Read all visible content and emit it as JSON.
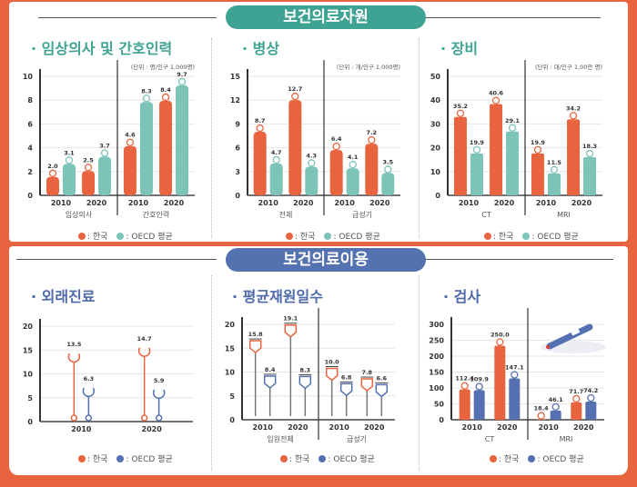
{
  "sections": {
    "resources": {
      "title": "보건의료자원",
      "color": "#3fa393"
    },
    "utilization": {
      "title": "보건의료이용",
      "color": "#5572b0"
    }
  },
  "legend": {
    "korea": ": 한국",
    "oecd": ": OECD 평균"
  },
  "colors": {
    "korea": "#e8643f",
    "oecd_resources": "#7cc3b8",
    "oecd_utilization": "#5470b0",
    "title_resources": "#3fa393",
    "title_utilization": "#4f6aa8"
  },
  "chart_data": [
    {
      "type": "bar",
      "title": "· 임상의사 및 간호인력",
      "unit": "(단위 : 명/인구 1,000명)",
      "ylim": [
        0,
        10
      ],
      "ticks": [
        0,
        2,
        4,
        6,
        8,
        10
      ],
      "groups": [
        {
          "label": "임상의사",
          "years": [
            "2010",
            "2020"
          ],
          "korea": [
            2.0,
            2.5
          ],
          "oecd": [
            3.1,
            3.7
          ]
        },
        {
          "label": "간호인력",
          "years": [
            "2010",
            "2020"
          ],
          "korea": [
            4.6,
            8.4
          ],
          "oecd": [
            8.3,
            9.7
          ]
        }
      ]
    },
    {
      "type": "bar",
      "title": "· 병상",
      "unit": "(단위 : 개/인구 1,000명)",
      "ylim": [
        0,
        15
      ],
      "ticks": [
        0,
        3,
        6,
        9,
        12,
        15
      ],
      "groups": [
        {
          "label": "전체",
          "years": [
            "2010",
            "2020"
          ],
          "korea": [
            8.7,
            12.7
          ],
          "oecd": [
            4.7,
            4.3
          ]
        },
        {
          "label": "급성기",
          "years": [
            "2010",
            "2020"
          ],
          "korea": [
            6.4,
            7.2
          ],
          "oecd": [
            4.1,
            3.5
          ]
        }
      ]
    },
    {
      "type": "bar",
      "title": "· 장비",
      "unit": "(단위 : 대/인구 1,00만 명)",
      "ylim": [
        0,
        50
      ],
      "ticks": [
        0,
        10,
        20,
        30,
        40,
        50
      ],
      "groups": [
        {
          "label": "CT",
          "years": [
            "2010",
            "2020"
          ],
          "korea": [
            35.2,
            40.6
          ],
          "oecd": [
            19.9,
            29.1
          ]
        },
        {
          "label": "MRI",
          "years": [
            "2010",
            "2020"
          ],
          "korea": [
            19.9,
            34.2
          ],
          "oecd": [
            11.5,
            18.3
          ]
        }
      ]
    },
    {
      "type": "lollipop",
      "title": "· 외래진료",
      "unit": "",
      "ylim": [
        0,
        20
      ],
      "ticks": [
        0,
        5,
        10,
        15,
        20
      ],
      "groups": [
        {
          "label": "",
          "years": [
            "2010",
            "2020"
          ],
          "korea": [
            13.5,
            14.7
          ],
          "oecd": [
            6.3,
            5.9
          ]
        }
      ]
    },
    {
      "type": "lollipop",
      "title": "· 평균재원일수",
      "unit": "",
      "ylim": [
        0,
        20
      ],
      "ticks": [
        0,
        5,
        10,
        15,
        20
      ],
      "groups": [
        {
          "label": "입원전체",
          "years": [
            "2010",
            "2020"
          ],
          "korea": [
            15.8,
            19.1
          ],
          "oecd": [
            8.4,
            8.3
          ]
        },
        {
          "label": "급성기",
          "years": [
            "2010",
            "2020"
          ],
          "korea": [
            10.0,
            7.8
          ],
          "oecd": [
            6.8,
            6.6
          ]
        }
      ]
    },
    {
      "type": "bar",
      "title": "· 검사",
      "unit": "",
      "ylim": [
        0,
        300
      ],
      "ticks": [
        0,
        50,
        100,
        150,
        200,
        250,
        300
      ],
      "groups": [
        {
          "label": "CT",
          "years": [
            "2010",
            "2020"
          ],
          "korea": [
            112.4,
            250.0
          ],
          "oecd": [
            109.9,
            147.1
          ]
        },
        {
          "label": "MRI",
          "years": [
            "2010",
            "2020"
          ],
          "korea": [
            18.4,
            71.7
          ],
          "oecd": [
            46.1,
            74.2
          ]
        }
      ]
    }
  ]
}
